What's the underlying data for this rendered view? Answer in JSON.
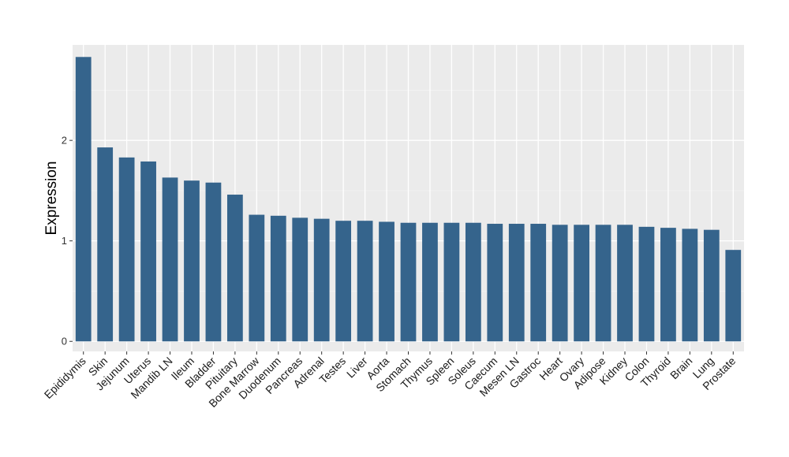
{
  "chart_data": {
    "type": "bar",
    "title": "",
    "xlabel": "",
    "ylabel": "Expression",
    "ylim": [
      -0.1,
      2.95
    ],
    "yticks": [
      0,
      1,
      2
    ],
    "grid": true,
    "colors": {
      "bar": "#35648c",
      "panel": "#ebebeb",
      "grid_major": "#ffffff",
      "grid_minor": "#f5f5f5"
    },
    "categories": [
      "Epididymis",
      "Skin",
      "Jejunum",
      "Uterus",
      "Mandib LN",
      "Ileum",
      "Bladder",
      "Pituitary",
      "Bone Marrow",
      "Duodenum",
      "Pancreas",
      "Adrenal",
      "Testes",
      "Liver",
      "Aorta",
      "Stomach",
      "Thymus",
      "Spleen",
      "Soleus",
      "Caecum",
      "Mesen LN",
      "Gastroc",
      "Heart",
      "Ovary",
      "Adipose",
      "Kidney",
      "Colon",
      "Thyroid",
      "Brain",
      "Lung",
      "Prostate"
    ],
    "values": [
      2.83,
      1.93,
      1.83,
      1.79,
      1.63,
      1.6,
      1.58,
      1.46,
      1.26,
      1.25,
      1.23,
      1.22,
      1.2,
      1.2,
      1.19,
      1.18,
      1.18,
      1.18,
      1.18,
      1.17,
      1.17,
      1.17,
      1.16,
      1.16,
      1.16,
      1.16,
      1.14,
      1.13,
      1.12,
      1.11,
      0.91
    ]
  }
}
